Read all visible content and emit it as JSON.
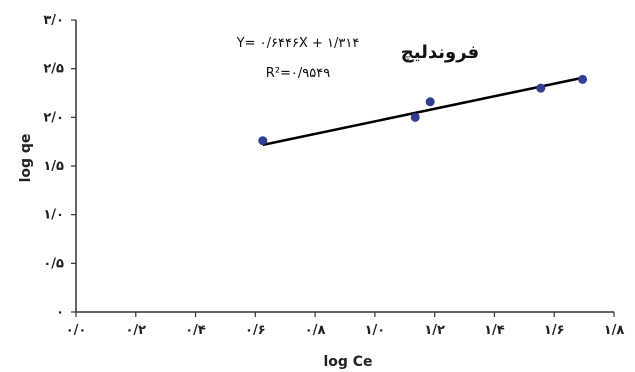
{
  "chart_data": {
    "type": "scatter",
    "title": "فروندلیچ",
    "xlabel": "log Ce",
    "ylabel": "log qe",
    "xlim": [
      0,
      1.8
    ],
    "ylim": [
      0,
      3
    ],
    "x_ticks": [
      "۰/۰",
      "۰/۲",
      "۰/۴",
      "۰/۶",
      "۰/۸",
      "۱/۰",
      "۱/۲",
      "۱/۴",
      "۱/۶",
      "۱/۸"
    ],
    "x_tick_values": [
      0,
      0.2,
      0.4,
      0.6,
      0.8,
      1.0,
      1.2,
      1.4,
      1.6,
      1.8
    ],
    "y_ticks": [
      "۰",
      "۰/۵",
      "۱/۰",
      "۱/۵",
      "۲/۰",
      "۲/۵",
      "۳/۰"
    ],
    "y_tick_values": [
      0,
      0.5,
      1.0,
      1.5,
      2.0,
      2.5,
      3.0
    ],
    "grid": false,
    "legend": "none",
    "point_color": "#2f3f8f",
    "line_color": "#000000",
    "series": [
      {
        "x": [
          0.625,
          1.135,
          1.185,
          1.555,
          1.695
        ],
        "y": [
          1.76,
          2.0,
          2.16,
          2.3,
          2.39
        ]
      }
    ],
    "trendline": {
      "slope": 0.6446,
      "intercept": 1.314,
      "x_range": [
        0.625,
        1.695
      ],
      "equation": "Y= ۰/۶۴۴۶X + ۱/۳۱۴",
      "r_squared": "R²=۰/۹۵۴۹"
    }
  }
}
